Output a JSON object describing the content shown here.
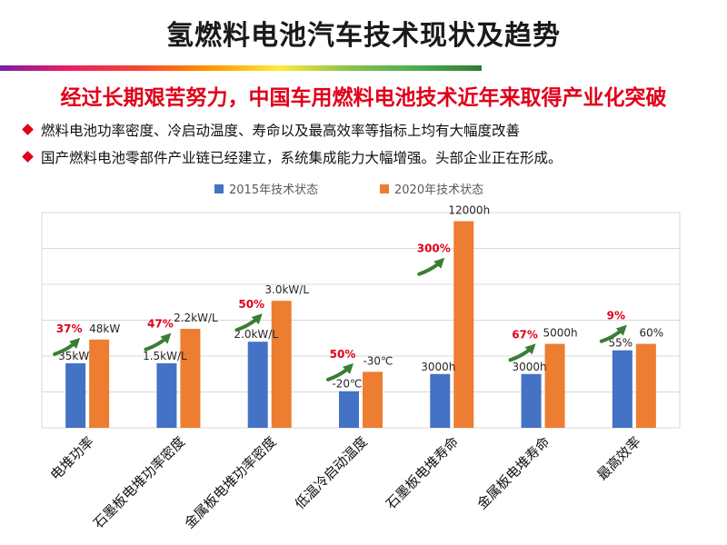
{
  "slide": {
    "title": "氢燃料电池汽车技术现状及趋势",
    "headline": "经过长期艰苦努力，中国车用燃料电池技术近年来取得产业化突破",
    "bullets": [
      "燃料电池功率密度、冷启动温度、寿命以及最高效率等指标上均有大幅度改善",
      "国产燃料电池零部件产业链已经建立，系统集成能力大幅增强。头部企业正在形成。"
    ]
  },
  "colors": {
    "series_2015": "#4472c4",
    "series_2020": "#ed7d31",
    "growth": "#e0001a",
    "arrow": "#3a7d34"
  },
  "chart_data": {
    "type": "bar",
    "legend_position": "top",
    "grid": true,
    "categories": [
      "电堆功率",
      "石墨板电堆功率密度",
      "金属板电堆功率密度",
      "低温冷启动温度",
      "石墨板电堆寿命",
      "金属板电堆寿命",
      "最高效率"
    ],
    "series": [
      {
        "name": "2015年技术状态",
        "labels": [
          "35kW",
          "1.5kW/L",
          "2.0kW/L",
          "-20℃",
          "3000h",
          "3000h",
          "55%"
        ],
        "fill": [
          0.3,
          0.3,
          0.4,
          0.17,
          0.25,
          0.25,
          0.36
        ]
      },
      {
        "name": "2020年技术状态",
        "labels": [
          "48kW",
          "2.2kW/L",
          "3.0kW/L",
          "-30℃",
          "12000h",
          "5000h",
          "60%"
        ],
        "fill": [
          0.41,
          0.46,
          0.59,
          0.26,
          0.96,
          0.39,
          0.39
        ]
      }
    ],
    "growth_labels": [
      "37%",
      "47%",
      "50%",
      "50%",
      "300%",
      "67%",
      "9%"
    ]
  }
}
